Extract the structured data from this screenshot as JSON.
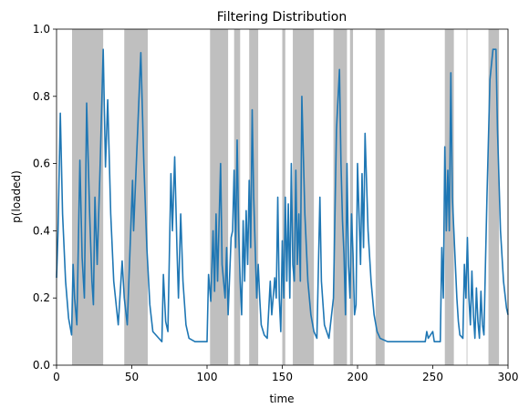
{
  "chart_data": {
    "type": "line",
    "title": "Filtering Distribution",
    "xlabel": "time",
    "ylabel": "p(loaded)",
    "xlim": [
      0,
      300
    ],
    "ylim": [
      0,
      1
    ],
    "xticks": [
      0,
      50,
      100,
      150,
      200,
      250,
      300
    ],
    "yticks": [
      {
        "value": 0,
        "label": "0.0"
      },
      0.2,
      0.4,
      0.6,
      0.8,
      {
        "value": 1,
        "label": "1.0"
      }
    ],
    "span_color": "#bfbfbf",
    "spans": [
      [
        10.3,
        31
      ],
      [
        45,
        60.6
      ],
      [
        102,
        114
      ],
      [
        118,
        122
      ],
      [
        128,
        134
      ],
      [
        150,
        152
      ],
      [
        157,
        171
      ],
      [
        184,
        193
      ],
      [
        195,
        197
      ],
      [
        212,
        218
      ],
      [
        258,
        264
      ],
      [
        272.5,
        273
      ],
      [
        287,
        294
      ]
    ],
    "series": [
      {
        "color": "#1f77b4",
        "x": [
          0,
          1,
          2.5,
          4,
          6,
          8,
          10,
          11,
          12,
          13.5,
          15.5,
          17,
          18.5,
          20,
          22,
          23.5,
          24.5,
          25.5,
          27,
          29,
          31,
          32.5,
          34,
          36,
          38,
          41,
          43.6,
          45,
          47,
          50.5,
          51.2,
          53,
          56,
          58,
          60,
          62,
          64,
          68,
          70,
          71,
          72.5,
          74,
          76,
          77,
          78.5,
          80,
          81,
          82.5,
          84,
          86,
          88,
          92,
          100,
          101,
          102.5,
          104,
          105,
          106,
          107,
          109,
          110,
          112,
          113,
          114,
          116,
          117,
          118,
          119,
          120,
          121,
          122,
          123,
          124,
          125,
          126,
          127,
          128,
          129,
          130,
          131,
          132,
          133,
          134,
          135,
          136,
          138,
          140,
          142,
          143,
          145,
          146,
          147,
          148,
          149,
          150,
          151,
          152,
          153,
          154,
          155,
          156,
          157,
          158,
          159,
          160,
          161,
          162,
          163,
          165,
          167,
          169,
          171,
          173,
          175,
          176,
          178,
          181,
          184,
          186,
          188,
          189,
          190,
          191,
          192,
          193,
          194,
          195,
          196,
          197,
          198,
          199,
          200,
          202,
          203,
          204,
          205,
          207,
          209,
          211,
          213,
          215,
          220,
          240,
          245,
          246,
          247,
          250,
          251,
          255,
          256,
          257,
          258,
          259,
          260,
          261,
          262,
          263,
          265,
          266,
          267,
          268,
          270,
          271,
          272,
          273,
          274,
          275,
          276,
          277,
          278,
          279,
          280,
          281,
          282,
          283,
          284,
          285,
          286,
          288,
          290,
          292,
          293,
          295,
          297,
          299,
          300
        ],
        "values": [
          0.26,
          0.4,
          0.75,
          0.45,
          0.25,
          0.14,
          0.09,
          0.3,
          0.2,
          0.12,
          0.61,
          0.32,
          0.2,
          0.78,
          0.45,
          0.25,
          0.18,
          0.5,
          0.3,
          0.6,
          0.94,
          0.59,
          0.79,
          0.45,
          0.25,
          0.12,
          0.31,
          0.2,
          0.12,
          0.55,
          0.4,
          0.6,
          0.93,
          0.6,
          0.35,
          0.18,
          0.1,
          0.08,
          0.07,
          0.27,
          0.13,
          0.1,
          0.57,
          0.4,
          0.62,
          0.35,
          0.2,
          0.45,
          0.25,
          0.12,
          0.08,
          0.07,
          0.07,
          0.27,
          0.19,
          0.4,
          0.22,
          0.45,
          0.25,
          0.6,
          0.3,
          0.2,
          0.35,
          0.15,
          0.38,
          0.4,
          0.58,
          0.35,
          0.67,
          0.4,
          0.25,
          0.15,
          0.43,
          0.25,
          0.46,
          0.3,
          0.55,
          0.35,
          0.76,
          0.5,
          0.35,
          0.2,
          0.3,
          0.2,
          0.12,
          0.09,
          0.08,
          0.25,
          0.15,
          0.26,
          0.2,
          0.5,
          0.2,
          0.1,
          0.37,
          0.2,
          0.5,
          0.25,
          0.48,
          0.2,
          0.6,
          0.3,
          0.25,
          0.58,
          0.3,
          0.45,
          0.25,
          0.8,
          0.45,
          0.25,
          0.15,
          0.1,
          0.08,
          0.5,
          0.25,
          0.12,
          0.08,
          0.2,
          0.7,
          0.88,
          0.6,
          0.43,
          0.33,
          0.15,
          0.6,
          0.3,
          0.2,
          0.45,
          0.33,
          0.15,
          0.18,
          0.6,
          0.3,
          0.57,
          0.35,
          0.69,
          0.4,
          0.25,
          0.15,
          0.1,
          0.08,
          0.07,
          0.07,
          0.07,
          0.1,
          0.08,
          0.1,
          0.07,
          0.07,
          0.35,
          0.2,
          0.65,
          0.4,
          0.58,
          0.4,
          0.87,
          0.5,
          0.3,
          0.2,
          0.13,
          0.09,
          0.08,
          0.3,
          0.2,
          0.38,
          0.2,
          0.12,
          0.28,
          0.15,
          0.08,
          0.23,
          0.13,
          0.08,
          0.22,
          0.12,
          0.09,
          0.3,
          0.5,
          0.85,
          0.94,
          0.94,
          0.7,
          0.4,
          0.25,
          0.17,
          0.15
        ]
      }
    ]
  }
}
